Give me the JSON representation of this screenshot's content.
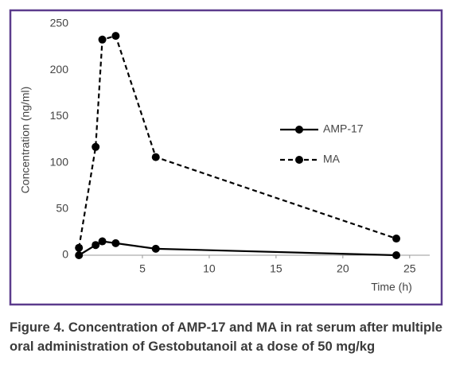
{
  "chart_data": {
    "type": "line",
    "x_label": "Time (h)",
    "y_label": "Concentration (ng/ml)",
    "xlim": [
      0,
      26.5
    ],
    "xticks": [
      5,
      10,
      15,
      20,
      25
    ],
    "ylim": [
      0,
      250
    ],
    "yticks": [
      0,
      50,
      100,
      150,
      200,
      250
    ],
    "grid": false,
    "series": [
      {
        "name": "AMP-17",
        "color": "#000000",
        "line_style": "solid",
        "x": [
          0.25,
          1.5,
          2,
          3,
          6,
          24
        ],
        "values": [
          0,
          11,
          15,
          13,
          7,
          0
        ]
      },
      {
        "name": "MA",
        "color": "#000000",
        "line_style": "dashed",
        "x": [
          0.25,
          1.5,
          2,
          3,
          6,
          24
        ],
        "values": [
          8,
          117,
          233,
          237,
          106,
          18
        ]
      }
    ],
    "caption": "Figure 4. Concentration of AMP-17 and MA in rat serum after multiple oral administration of Gestobutanoil at a dose of 50 mg/kg"
  }
}
